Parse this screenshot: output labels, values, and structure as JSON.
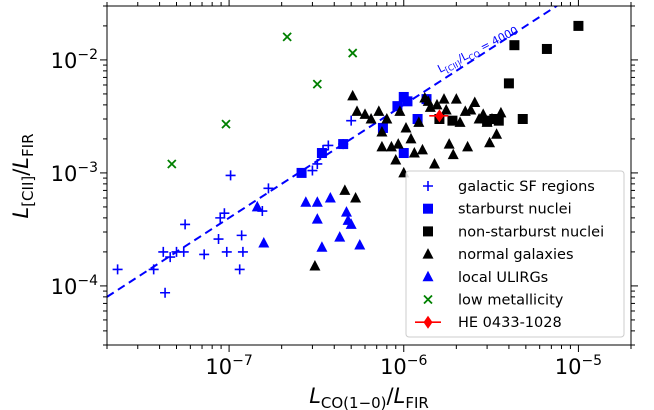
{
  "chart_data": {
    "type": "scatter",
    "title": "",
    "xlabel": {
      "main": "L",
      "sub": "CO(1−0)",
      "sep": "/",
      "main2": "L",
      "sub2": "FIR"
    },
    "ylabel": {
      "main": "L",
      "sub": "[CII]",
      "sep": "/",
      "main2": "L",
      "sub2": "FIR"
    },
    "xscale": "log",
    "yscale": "log",
    "xlim": [
      2e-08,
      2e-05
    ],
    "ylim": [
      3e-05,
      0.03
    ],
    "x_ticks": [
      {
        "value": 1e-07,
        "mantissa": "10",
        "exp": "−7"
      },
      {
        "value": 1e-06,
        "mantissa": "10",
        "exp": "−6"
      },
      {
        "value": 1e-05,
        "mantissa": "10",
        "exp": "−5"
      }
    ],
    "y_ticks": [
      {
        "value": 0.0001,
        "mantissa": "10",
        "exp": "−4"
      },
      {
        "value": 0.001,
        "mantissa": "10",
        "exp": "−3"
      },
      {
        "value": 0.01,
        "mantissa": "10",
        "exp": "−2"
      }
    ],
    "reference_line": {
      "ratio": 4000,
      "color": "#0000ff",
      "label_main": "L",
      "label_sub1": "[CII]",
      "label_sep": "/L",
      "label_sub2": "CO",
      "label_end": " = 4000"
    },
    "legend_position": "lower right",
    "series": [
      {
        "name": "galactic SF regions",
        "marker": "plus",
        "color": "#0000ff",
        "points": [
          [
            2.3e-08,
            0.00014
          ],
          [
            3.7e-08,
            0.00014
          ],
          [
            4.2e-08,
            0.0002
          ],
          [
            4.3e-08,
            8.7e-05
          ],
          [
            4.6e-08,
            0.00018
          ],
          [
            5e-08,
            0.0002
          ],
          [
            5.5e-08,
            0.0002
          ],
          [
            5.6e-08,
            0.00035
          ],
          [
            7.2e-08,
            0.00019
          ],
          [
            8.7e-08,
            0.00026
          ],
          [
            8.9e-08,
            0.0004
          ],
          [
            9.4e-08,
            0.00044
          ],
          [
            9.7e-08,
            0.0002
          ],
          [
            1.02e-07,
            0.00095
          ],
          [
            1.15e-07,
            0.00014
          ],
          [
            1.18e-07,
            0.00028
          ],
          [
            1.2e-07,
            0.0002
          ],
          [
            1.55e-07,
            0.00046
          ],
          [
            1.68e-07,
            0.00073
          ],
          [
            3e-07,
            0.00105
          ],
          [
            3.2e-07,
            0.0012
          ],
          [
            3.45e-07,
            0.0016
          ],
          [
            3.7e-07,
            0.00175
          ],
          [
            4.5e-07,
            0.0018
          ],
          [
            5e-07,
            0.0029
          ]
        ]
      },
      {
        "name": "starburst nuclei",
        "marker": "square",
        "color": "#0000ff",
        "points": [
          [
            2.6e-07,
            0.001
          ],
          [
            3.4e-07,
            0.0015
          ],
          [
            4.5e-07,
            0.0018
          ],
          [
            7.6e-07,
            0.0025
          ],
          [
            9.2e-07,
            0.0039
          ],
          [
            1e-06,
            0.0015
          ],
          [
            1e-06,
            0.0047
          ],
          [
            1.05e-06,
            0.0043
          ],
          [
            1.2e-06,
            0.003
          ],
          [
            1.35e-06,
            0.0045
          ]
        ]
      },
      {
        "name": "non-starburst nuclei",
        "marker": "square",
        "color": "#000000",
        "points": [
          [
            1.6e-06,
            0.003
          ],
          [
            1.9e-06,
            0.0029
          ],
          [
            3e-06,
            0.0029
          ],
          [
            3.3e-06,
            0.003
          ],
          [
            3.5e-06,
            0.0029
          ],
          [
            4e-06,
            0.0062
          ],
          [
            4.3e-06,
            0.0135
          ],
          [
            4.8e-06,
            0.003
          ],
          [
            6.6e-06,
            0.0125
          ],
          [
            1e-05,
            0.02
          ]
        ]
      },
      {
        "name": "normal galaxies",
        "marker": "triangle",
        "color": "#000000",
        "points": [
          [
            3.1e-07,
            0.00015
          ],
          [
            4.6e-07,
            0.0007
          ],
          [
            5.1e-07,
            0.0048
          ],
          [
            5.3e-07,
            0.0006
          ],
          [
            5.4e-07,
            0.0035
          ],
          [
            6e-07,
            0.0033
          ],
          [
            6.5e-07,
            0.003
          ],
          [
            7.2e-07,
            0.0035
          ],
          [
            7.5e-07,
            0.0023
          ],
          [
            7.5e-07,
            0.0017
          ],
          [
            8e-07,
            0.003
          ],
          [
            8.5e-07,
            0.0017
          ],
          [
            9e-07,
            0.0013
          ],
          [
            9.3e-07,
            0.0018
          ],
          [
            9.5e-07,
            0.0035
          ],
          [
            1e-06,
            0.001
          ],
          [
            1.03e-06,
            0.0025
          ],
          [
            1.1e-06,
            0.002
          ],
          [
            1.15e-06,
            0.0015
          ],
          [
            1.22e-06,
            0.0028
          ],
          [
            1.28e-06,
            0.0016
          ],
          [
            1.32e-06,
            0.0046
          ],
          [
            1.38e-06,
            0.0043
          ],
          [
            1.42e-06,
            0.0038
          ],
          [
            1.5e-06,
            0.0012
          ],
          [
            1.55e-06,
            0.004
          ],
          [
            1.7e-06,
            0.0045
          ],
          [
            1.75e-06,
            0.0036
          ],
          [
            1.82e-06,
            0.0018
          ],
          [
            1.92e-06,
            0.00145
          ],
          [
            2e-06,
            0.0045
          ],
          [
            2.1e-06,
            0.0028
          ],
          [
            2.25e-06,
            0.0035
          ],
          [
            2.32e-06,
            0.0017
          ],
          [
            2.42e-06,
            0.0036
          ],
          [
            2.55e-06,
            0.0042
          ],
          [
            2.7e-06,
            0.003
          ],
          [
            2.85e-06,
            0.0033
          ],
          [
            3e-06,
            0.0028
          ],
          [
            3.1e-06,
            0.00185
          ],
          [
            3.2e-06,
            0.003
          ],
          [
            3.4e-06,
            0.0022
          ],
          [
            3.6e-06,
            0.0034
          ]
        ]
      },
      {
        "name": "local ULIRGs",
        "marker": "triangle",
        "color": "#0000ff",
        "points": [
          [
            1.45e-07,
            0.0005
          ],
          [
            1.58e-07,
            0.00024
          ],
          [
            2.75e-07,
            0.00055
          ],
          [
            3.2e-07,
            0.00055
          ],
          [
            3.2e-07,
            0.00039
          ],
          [
            3.4e-07,
            0.00022
          ],
          [
            3.8e-07,
            0.0006
          ],
          [
            4.3e-07,
            0.00027
          ],
          [
            4.7e-07,
            0.00045
          ],
          [
            4.8e-07,
            0.00038
          ],
          [
            5e-07,
            0.00035
          ],
          [
            5.6e-07,
            0.00023
          ]
        ]
      },
      {
        "name": "low metallicity",
        "marker": "x",
        "color": "#008000",
        "points": [
          [
            4.7e-08,
            0.0012
          ],
          [
            9.6e-08,
            0.0027
          ],
          [
            2.15e-07,
            0.016
          ],
          [
            3.2e-07,
            0.0061
          ],
          [
            5.1e-07,
            0.0115
          ]
        ]
      },
      {
        "name": "HE 0433-1028",
        "marker": "diamond",
        "color": "#ff0000",
        "points": [
          [
            1.6e-06,
            0.0032
          ]
        ],
        "xerr": [
          [
            1.4e-06,
            1.8e-06
          ]
        ]
      }
    ]
  }
}
